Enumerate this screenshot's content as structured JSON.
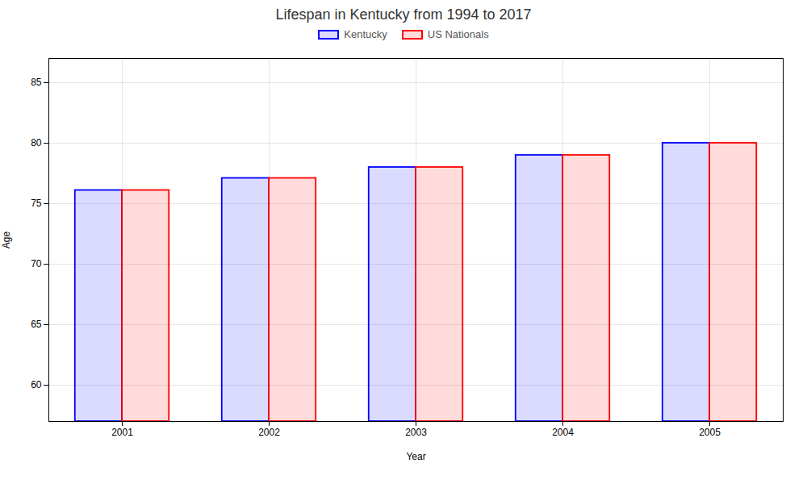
{
  "chart_data": {
    "type": "bar",
    "title": "Lifespan in Kentucky from 1994 to 2017",
    "xlabel": "Year",
    "ylabel": "Age",
    "categories": [
      "2001",
      "2002",
      "2003",
      "2004",
      "2005"
    ],
    "series": [
      {
        "name": "Kentucky",
        "color": "#0000ff",
        "values": [
          76.1,
          77.1,
          78.0,
          79.0,
          80.0
        ]
      },
      {
        "name": "US Nationals",
        "color": "#ff0000",
        "values": [
          76.1,
          77.1,
          78.0,
          79.0,
          80.0
        ]
      }
    ],
    "ylim": [
      57,
      87
    ],
    "yticks": [
      60,
      65,
      70,
      75,
      80,
      85
    ],
    "grid": true,
    "legend": "top"
  }
}
